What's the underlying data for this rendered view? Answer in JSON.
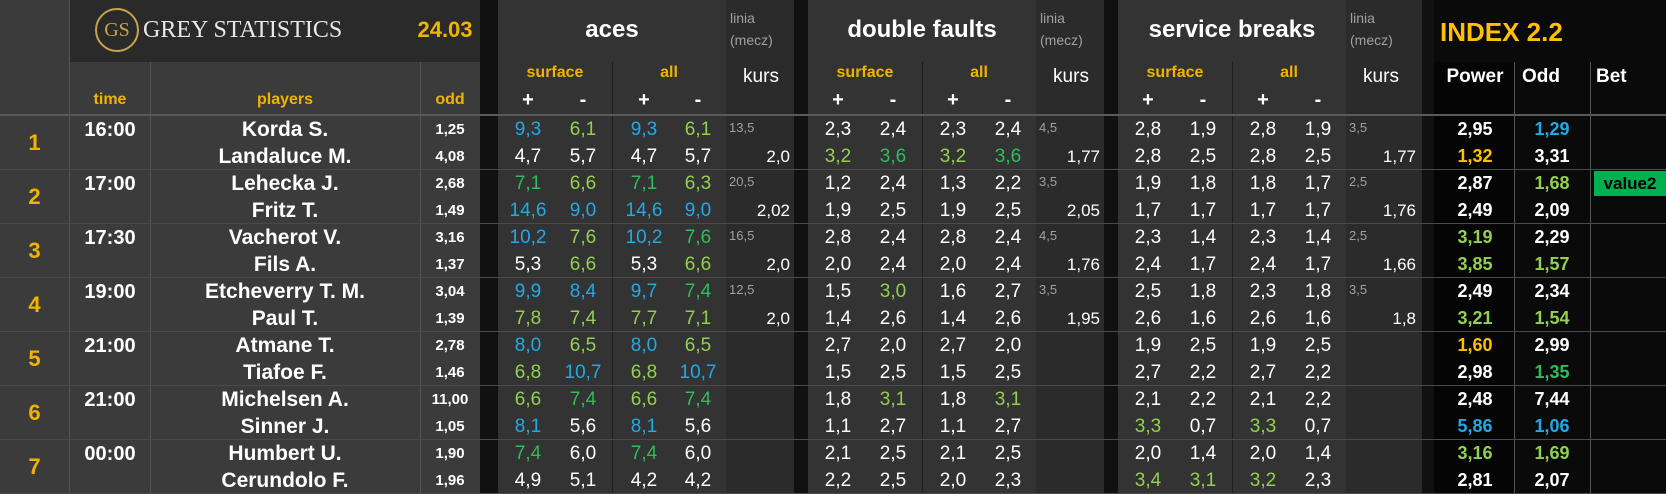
{
  "header": {
    "logo_initials": "GS",
    "brand": "GREY STATISTICS",
    "date": "24.03",
    "col_time": "time",
    "col_players": "players",
    "col_odd": "odd",
    "aces": "aces",
    "double_faults": "double faults",
    "service_breaks": "service breaks",
    "linia": "linia",
    "mecz": "(mecz)",
    "kurs": "kurs",
    "surface": "surface",
    "all": "all",
    "plus": "+",
    "minus": "-",
    "index": "INDEX 2.2",
    "power": "Power",
    "odd": "Odd",
    "bet": "Bet"
  },
  "colors": {
    "accent": "#ffc000",
    "blue": "#21a9e6",
    "green": "#2ebd5a",
    "light_green": "#92d050",
    "bet_green": "#00b050"
  },
  "matches": [
    {
      "n": "1",
      "time": "16:00",
      "p": [
        {
          "name": "Korda S.",
          "odd": "1,25",
          "aces": [
            [
              "9,3",
              "blue"
            ],
            [
              "6,1",
              "lgreen"
            ],
            [
              "9,3",
              "blue"
            ],
            [
              "6,1",
              "lgreen"
            ]
          ],
          "df": [
            [
              "2,3",
              "white"
            ],
            [
              "2,4",
              "white"
            ],
            [
              "2,3",
              "white"
            ],
            [
              "2,4",
              "white"
            ]
          ],
          "sb": [
            [
              "2,8",
              "white"
            ],
            [
              "1,9",
              "white"
            ],
            [
              "2,8",
              "white"
            ],
            [
              "1,9",
              "white"
            ]
          ],
          "power": [
            "2,95",
            "white"
          ],
          "podd": [
            "1,29",
            "blue"
          ]
        },
        {
          "name": "Landaluce M.",
          "odd": "4,08",
          "aces": [
            [
              "4,7",
              "white"
            ],
            [
              "5,7",
              "white"
            ],
            [
              "4,7",
              "white"
            ],
            [
              "5,7",
              "white"
            ]
          ],
          "df": [
            [
              "3,2",
              "lgreen"
            ],
            [
              "3,6",
              "green"
            ],
            [
              "3,2",
              "lgreen"
            ],
            [
              "3,6",
              "green"
            ]
          ],
          "sb": [
            [
              "2,8",
              "white"
            ],
            [
              "2,5",
              "white"
            ],
            [
              "2,8",
              "white"
            ],
            [
              "2,5",
              "white"
            ]
          ],
          "power": [
            "1,32",
            "yel"
          ],
          "podd": [
            "3,31",
            "white"
          ]
        }
      ],
      "a_line": "13,5",
      "a_kurs": "2,0",
      "d_line": "4,5",
      "d_kurs": "1,77",
      "s_line": "3,5",
      "s_kurs": "1,77",
      "bet": ""
    },
    {
      "n": "2",
      "time": "17:00",
      "p": [
        {
          "name": "Lehecka J.",
          "odd": "2,68",
          "aces": [
            [
              "7,1",
              "green"
            ],
            [
              "6,6",
              "lgreen"
            ],
            [
              "7,1",
              "green"
            ],
            [
              "6,3",
              "lgreen"
            ]
          ],
          "df": [
            [
              "1,2",
              "white"
            ],
            [
              "2,4",
              "white"
            ],
            [
              "1,3",
              "white"
            ],
            [
              "2,2",
              "white"
            ]
          ],
          "sb": [
            [
              "1,9",
              "white"
            ],
            [
              "1,8",
              "white"
            ],
            [
              "1,8",
              "white"
            ],
            [
              "1,7",
              "white"
            ]
          ],
          "power": [
            "2,87",
            "white"
          ],
          "podd": [
            "1,68",
            "lgreen"
          ]
        },
        {
          "name": "Fritz T.",
          "odd": "1,49",
          "aces": [
            [
              "14,6",
              "blue"
            ],
            [
              "9,0",
              "blue"
            ],
            [
              "14,6",
              "blue"
            ],
            [
              "9,0",
              "blue"
            ]
          ],
          "df": [
            [
              "1,9",
              "white"
            ],
            [
              "2,5",
              "white"
            ],
            [
              "1,9",
              "white"
            ],
            [
              "2,5",
              "white"
            ]
          ],
          "sb": [
            [
              "1,7",
              "white"
            ],
            [
              "1,7",
              "white"
            ],
            [
              "1,7",
              "white"
            ],
            [
              "1,7",
              "white"
            ]
          ],
          "power": [
            "2,49",
            "white"
          ],
          "podd": [
            "2,09",
            "white"
          ]
        }
      ],
      "a_line": "20,5",
      "a_kurs": "2,02",
      "d_line": "3,5",
      "d_kurs": "2,05",
      "s_line": "2,5",
      "s_kurs": "1,76",
      "bet": "value2"
    },
    {
      "n": "3",
      "time": "17:30",
      "p": [
        {
          "name": "Vacherot V.",
          "odd": "3,16",
          "aces": [
            [
              "10,2",
              "blue"
            ],
            [
              "7,6",
              "lgreen"
            ],
            [
              "10,2",
              "blue"
            ],
            [
              "7,6",
              "green"
            ]
          ],
          "df": [
            [
              "2,8",
              "white"
            ],
            [
              "2,4",
              "white"
            ],
            [
              "2,8",
              "white"
            ],
            [
              "2,4",
              "white"
            ]
          ],
          "sb": [
            [
              "2,3",
              "white"
            ],
            [
              "1,4",
              "white"
            ],
            [
              "2,3",
              "white"
            ],
            [
              "1,4",
              "white"
            ]
          ],
          "power": [
            "3,19",
            "lgreen"
          ],
          "podd": [
            "2,29",
            "white"
          ]
        },
        {
          "name": "Fils A.",
          "odd": "1,37",
          "aces": [
            [
              "5,3",
              "white"
            ],
            [
              "6,6",
              "lgreen"
            ],
            [
              "5,3",
              "white"
            ],
            [
              "6,6",
              "lgreen"
            ]
          ],
          "df": [
            [
              "2,0",
              "white"
            ],
            [
              "2,4",
              "white"
            ],
            [
              "2,0",
              "white"
            ],
            [
              "2,4",
              "white"
            ]
          ],
          "sb": [
            [
              "2,4",
              "white"
            ],
            [
              "1,7",
              "white"
            ],
            [
              "2,4",
              "white"
            ],
            [
              "1,7",
              "white"
            ]
          ],
          "power": [
            "3,85",
            "lgreen"
          ],
          "podd": [
            "1,57",
            "lgreen"
          ]
        }
      ],
      "a_line": "16,5",
      "a_kurs": "2,0",
      "d_line": "4,5",
      "d_kurs": "1,76",
      "s_line": "2,5",
      "s_kurs": "1,66",
      "bet": ""
    },
    {
      "n": "4",
      "time": "19:00",
      "p": [
        {
          "name": "Etcheverry T. M.",
          "odd": "3,04",
          "aces": [
            [
              "9,9",
              "blue"
            ],
            [
              "8,4",
              "blue"
            ],
            [
              "9,7",
              "blue"
            ],
            [
              "7,4",
              "green"
            ]
          ],
          "df": [
            [
              "1,5",
              "white"
            ],
            [
              "3,0",
              "lgreen"
            ],
            [
              "1,6",
              "white"
            ],
            [
              "2,7",
              "white"
            ]
          ],
          "sb": [
            [
              "2,5",
              "white"
            ],
            [
              "1,8",
              "white"
            ],
            [
              "2,3",
              "white"
            ],
            [
              "1,8",
              "white"
            ]
          ],
          "power": [
            "2,49",
            "white"
          ],
          "podd": [
            "2,34",
            "white"
          ]
        },
        {
          "name": "Paul T.",
          "odd": "1,39",
          "aces": [
            [
              "7,8",
              "lgreen"
            ],
            [
              "7,4",
              "lgreen"
            ],
            [
              "7,7",
              "lgreen"
            ],
            [
              "7,1",
              "lgreen"
            ]
          ],
          "df": [
            [
              "1,4",
              "white"
            ],
            [
              "2,6",
              "white"
            ],
            [
              "1,4",
              "white"
            ],
            [
              "2,6",
              "white"
            ]
          ],
          "sb": [
            [
              "2,6",
              "white"
            ],
            [
              "1,6",
              "white"
            ],
            [
              "2,6",
              "white"
            ],
            [
              "1,6",
              "white"
            ]
          ],
          "power": [
            "3,21",
            "lgreen"
          ],
          "podd": [
            "1,54",
            "lgreen"
          ]
        }
      ],
      "a_line": "12,5",
      "a_kurs": "2,0",
      "d_line": "3,5",
      "d_kurs": "1,95",
      "s_line": "3,5",
      "s_kurs": "1,8",
      "bet": ""
    },
    {
      "n": "5",
      "time": "21:00",
      "p": [
        {
          "name": "Atmane T.",
          "odd": "2,78",
          "aces": [
            [
              "8,0",
              "blue"
            ],
            [
              "6,5",
              "lgreen"
            ],
            [
              "8,0",
              "blue"
            ],
            [
              "6,5",
              "lgreen"
            ]
          ],
          "df": [
            [
              "2,7",
              "white"
            ],
            [
              "2,0",
              "white"
            ],
            [
              "2,7",
              "white"
            ],
            [
              "2,0",
              "white"
            ]
          ],
          "sb": [
            [
              "1,9",
              "white"
            ],
            [
              "2,5",
              "white"
            ],
            [
              "1,9",
              "white"
            ],
            [
              "2,5",
              "white"
            ]
          ],
          "power": [
            "1,60",
            "yel"
          ],
          "podd": [
            "2,99",
            "white"
          ]
        },
        {
          "name": "Tiafoe F.",
          "odd": "1,46",
          "aces": [
            [
              "6,8",
              "lgreen"
            ],
            [
              "10,7",
              "blue"
            ],
            [
              "6,8",
              "lgreen"
            ],
            [
              "10,7",
              "blue"
            ]
          ],
          "df": [
            [
              "1,5",
              "white"
            ],
            [
              "2,5",
              "white"
            ],
            [
              "1,5",
              "white"
            ],
            [
              "2,5",
              "white"
            ]
          ],
          "sb": [
            [
              "2,7",
              "white"
            ],
            [
              "2,2",
              "white"
            ],
            [
              "2,7",
              "white"
            ],
            [
              "2,2",
              "white"
            ]
          ],
          "power": [
            "2,98",
            "white"
          ],
          "podd": [
            "1,35",
            "green"
          ]
        }
      ],
      "a_line": "",
      "a_kurs": "",
      "d_line": "",
      "d_kurs": "",
      "s_line": "",
      "s_kurs": "",
      "bet": ""
    },
    {
      "n": "6",
      "time": "21:00",
      "p": [
        {
          "name": "Michelsen A.",
          "odd": "11,00",
          "aces": [
            [
              "6,6",
              "lgreen"
            ],
            [
              "7,4",
              "green"
            ],
            [
              "6,6",
              "lgreen"
            ],
            [
              "7,4",
              "green"
            ]
          ],
          "df": [
            [
              "1,8",
              "white"
            ],
            [
              "3,1",
              "lgreen"
            ],
            [
              "1,8",
              "white"
            ],
            [
              "3,1",
              "lgreen"
            ]
          ],
          "sb": [
            [
              "2,1",
              "white"
            ],
            [
              "2,2",
              "white"
            ],
            [
              "2,1",
              "white"
            ],
            [
              "2,2",
              "white"
            ]
          ],
          "power": [
            "2,48",
            "white"
          ],
          "podd": [
            "7,44",
            "white"
          ]
        },
        {
          "name": "Sinner J.",
          "odd": "1,05",
          "aces": [
            [
              "8,1",
              "blue"
            ],
            [
              "5,6",
              "white"
            ],
            [
              "8,1",
              "blue"
            ],
            [
              "5,6",
              "white"
            ]
          ],
          "df": [
            [
              "1,1",
              "white"
            ],
            [
              "2,7",
              "white"
            ],
            [
              "1,1",
              "white"
            ],
            [
              "2,7",
              "white"
            ]
          ],
          "sb": [
            [
              "3,3",
              "lgreen"
            ],
            [
              "0,7",
              "white"
            ],
            [
              "3,3",
              "lgreen"
            ],
            [
              "0,7",
              "white"
            ]
          ],
          "power": [
            "5,86",
            "blue"
          ],
          "podd": [
            "1,06",
            "blue"
          ]
        }
      ],
      "a_line": "",
      "a_kurs": "",
      "d_line": "",
      "d_kurs": "",
      "s_line": "",
      "s_kurs": "",
      "bet": ""
    },
    {
      "n": "7",
      "time": "00:00",
      "p": [
        {
          "name": "Humbert U.",
          "odd": "1,90",
          "aces": [
            [
              "7,4",
              "green"
            ],
            [
              "6,0",
              "white"
            ],
            [
              "7,4",
              "green"
            ],
            [
              "6,0",
              "white"
            ]
          ],
          "df": [
            [
              "2,1",
              "white"
            ],
            [
              "2,5",
              "white"
            ],
            [
              "2,1",
              "white"
            ],
            [
              "2,5",
              "white"
            ]
          ],
          "sb": [
            [
              "2,0",
              "white"
            ],
            [
              "1,4",
              "white"
            ],
            [
              "2,0",
              "white"
            ],
            [
              "1,4",
              "white"
            ]
          ],
          "power": [
            "3,16",
            "lgreen"
          ],
          "podd": [
            "1,69",
            "lgreen"
          ]
        },
        {
          "name": "Cerundolo F.",
          "odd": "1,96",
          "aces": [
            [
              "4,9",
              "white"
            ],
            [
              "5,1",
              "white"
            ],
            [
              "4,2",
              "white"
            ],
            [
              "4,2",
              "white"
            ]
          ],
          "df": [
            [
              "2,2",
              "white"
            ],
            [
              "2,5",
              "white"
            ],
            [
              "2,0",
              "white"
            ],
            [
              "2,3",
              "white"
            ]
          ],
          "sb": [
            [
              "3,4",
              "lgreen"
            ],
            [
              "3,1",
              "lgreen"
            ],
            [
              "3,2",
              "lgreen"
            ],
            [
              "2,3",
              "white"
            ]
          ],
          "power": [
            "2,81",
            "white"
          ],
          "podd": [
            "2,07",
            "white"
          ]
        }
      ],
      "a_line": "",
      "a_kurs": "",
      "d_line": "",
      "d_kurs": "",
      "s_line": "",
      "s_kurs": "",
      "bet": ""
    }
  ]
}
